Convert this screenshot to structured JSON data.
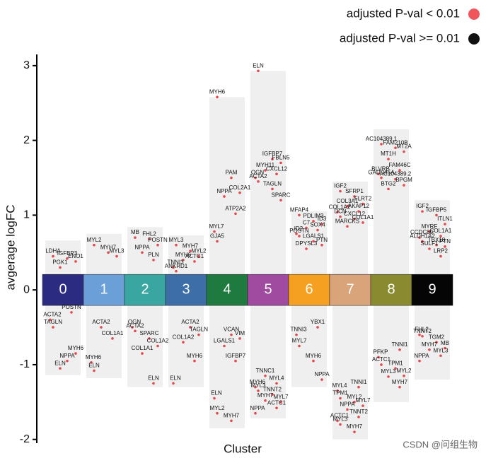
{
  "chart_data": {
    "type": "strip",
    "x_label": "Cluster",
    "y_label": "avgerage logFC",
    "ylim": [
      -2.05,
      3.15
    ],
    "yticks": [
      -2,
      -1,
      0,
      1,
      2,
      3
    ],
    "point_color": "#e5474d",
    "band_color": "#efefef",
    "legend": [
      {
        "name": "adjusted P-val < 0.01",
        "color": "#f0555c"
      },
      {
        "name": "adjusted  P-val >= 0.01",
        "color": "#111111"
      }
    ],
    "watermark": "CSDN @问组生物",
    "clusters": [
      {
        "label": "0",
        "color": "#2b2b82",
        "max": 0.66,
        "min": -1.14,
        "genes": [
          {
            "name": "LDHA",
            "value": 0.45
          },
          {
            "name": "IGFBP3",
            "value": 0.42
          },
          {
            "name": "ENO1",
            "value": 0.38
          },
          {
            "name": "PGK1",
            "value": 0.3
          },
          {
            "name": "POSTN",
            "value": -0.3
          },
          {
            "name": "ACTA2",
            "value": -0.4
          },
          {
            "name": "TAGLN",
            "value": -0.5
          },
          {
            "name": "NPPA",
            "value": -0.95
          },
          {
            "name": "MYH6",
            "value": -0.85
          },
          {
            "name": "ELN",
            "value": -1.05
          }
        ]
      },
      {
        "label": "1",
        "color": "#6b9fd8",
        "max": 0.75,
        "min": -1.18,
        "genes": [
          {
            "name": "MYL2",
            "value": 0.6
          },
          {
            "name": "MYH7",
            "value": 0.5
          },
          {
            "name": "MYL3",
            "value": 0.45
          },
          {
            "name": "ACTA2",
            "value": -0.5
          },
          {
            "name": "COL1A1",
            "value": -0.65
          },
          {
            "name": "MYH6",
            "value": -0.97
          },
          {
            "name": "ELN",
            "value": -1.08
          }
        ]
      },
      {
        "label": "2",
        "color": "#3aa6a2",
        "max": 0.84,
        "min": -1.3,
        "genes": [
          {
            "name": "MB",
            "value": 0.7
          },
          {
            "name": "FHL2",
            "value": 0.68
          },
          {
            "name": "POSTN",
            "value": 0.6
          },
          {
            "name": "NPPA",
            "value": 0.5
          },
          {
            "name": "PLN",
            "value": 0.4
          },
          {
            "name": "OGN",
            "value": -0.5
          },
          {
            "name": "ACTA2",
            "value": -0.55
          },
          {
            "name": "SPARC",
            "value": -0.65
          },
          {
            "name": "COL1A2",
            "value": -0.75
          },
          {
            "name": "COL1A1",
            "value": -0.85
          },
          {
            "name": "ELN",
            "value": -1.25
          }
        ]
      },
      {
        "label": "3",
        "color": "#3d6ea8",
        "max": 0.73,
        "min": -1.3,
        "genes": [
          {
            "name": "MYL3",
            "value": 0.6
          },
          {
            "name": "MYH7",
            "value": 0.52
          },
          {
            "name": "MYL2",
            "value": 0.45
          },
          {
            "name": "MYH6",
            "value": 0.4
          },
          {
            "name": "ACTC1",
            "value": 0.38
          },
          {
            "name": "TNNI3",
            "value": 0.3
          },
          {
            "name": "ANKRD1",
            "value": 0.25
          },
          {
            "name": "ACTA2",
            "value": -0.5
          },
          {
            "name": "TAGLN",
            "value": -0.6
          },
          {
            "name": "COL1A2",
            "value": -0.7
          },
          {
            "name": "MYH6",
            "value": -0.95
          },
          {
            "name": "ELN",
            "value": -1.25
          }
        ]
      },
      {
        "label": "4",
        "color": "#1e7a3e",
        "max": 2.58,
        "min": -1.85,
        "genes": [
          {
            "name": "MYH6",
            "value": 2.58
          },
          {
            "name": "PAM",
            "value": 1.5
          },
          {
            "name": "COL2A1",
            "value": 1.3
          },
          {
            "name": "NPPA",
            "value": 1.25
          },
          {
            "name": "ATP2A2",
            "value": 1.02
          },
          {
            "name": "MYL7",
            "value": 0.78
          },
          {
            "name": "GJA5",
            "value": 0.65
          },
          {
            "name": "VCAN",
            "value": -0.6
          },
          {
            "name": "VIM",
            "value": -0.65
          },
          {
            "name": "LGALS1",
            "value": -0.75
          },
          {
            "name": "IGFBP7",
            "value": -0.95
          },
          {
            "name": "ELN",
            "value": -1.45
          },
          {
            "name": "MYL2",
            "value": -1.65
          },
          {
            "name": "MYH7",
            "value": -1.75
          }
        ]
      },
      {
        "label": "5",
        "color": "#a04aa0",
        "max": 2.93,
        "min": -1.72,
        "genes": [
          {
            "name": "ELN",
            "value": 2.93
          },
          {
            "name": "IGFBP7",
            "value": 1.75
          },
          {
            "name": "FBLN5",
            "value": 1.7
          },
          {
            "name": "MYH11",
            "value": 1.6
          },
          {
            "name": "CXCL12",
            "value": 1.55
          },
          {
            "name": "OGN",
            "value": 1.5
          },
          {
            "name": "ACTA2",
            "value": 1.45
          },
          {
            "name": "TAGLN",
            "value": 1.35
          },
          {
            "name": "SPARC",
            "value": 1.2
          },
          {
            "name": "TNNC1",
            "value": -1.15
          },
          {
            "name": "MYL4",
            "value": -1.25
          },
          {
            "name": "MYH6",
            "value": -1.3
          },
          {
            "name": "MYL3",
            "value": -1.35
          },
          {
            "name": "TNNT2",
            "value": -1.4
          },
          {
            "name": "MYL7",
            "value": -1.5
          },
          {
            "name": "MYH7",
            "value": -1.48
          },
          {
            "name": "ACTC1",
            "value": -1.58
          },
          {
            "name": "NPPA",
            "value": -1.65
          }
        ]
      },
      {
        "label": "6",
        "color": "#f5a020",
        "max": 1.05,
        "min": -1.3,
        "genes": [
          {
            "name": "MFAP4",
            "value": 1.0
          },
          {
            "name": "PDLIM3",
            "value": 0.92
          },
          {
            "name": "ID3",
            "value": 0.88
          },
          {
            "name": "C7",
            "value": 0.83
          },
          {
            "name": "SOX4",
            "value": 0.8
          },
          {
            "name": "ID2",
            "value": 0.75
          },
          {
            "name": "POSTN",
            "value": 0.72
          },
          {
            "name": "LGALS1",
            "value": 0.65
          },
          {
            "name": "PTN",
            "value": 0.6
          },
          {
            "name": "DPYSL3",
            "value": 0.55
          },
          {
            "name": "YBX1",
            "value": -0.5
          },
          {
            "name": "TNNI3",
            "value": -0.6
          },
          {
            "name": "MYL7",
            "value": -0.75
          },
          {
            "name": "MYH6",
            "value": -0.95
          },
          {
            "name": "NPPA",
            "value": -1.2
          }
        ]
      },
      {
        "label": "7",
        "color": "#d9a47a",
        "max": 1.45,
        "min": -2.0,
        "genes": [
          {
            "name": "IGF2",
            "value": 1.32
          },
          {
            "name": "SFRP1",
            "value": 1.25
          },
          {
            "name": "FLRT2",
            "value": 1.15
          },
          {
            "name": "COL3A1",
            "value": 1.12
          },
          {
            "name": "AKAP12",
            "value": 1.05
          },
          {
            "name": "COL1A2",
            "value": 1.04
          },
          {
            "name": "DCN",
            "value": 0.98
          },
          {
            "name": "CXCL12",
            "value": 0.95
          },
          {
            "name": "COL1A1",
            "value": 0.9
          },
          {
            "name": "MARCKS",
            "value": 0.85
          },
          {
            "name": "TNNI1",
            "value": -1.3
          },
          {
            "name": "MYL4",
            "value": -1.35
          },
          {
            "name": "TPM1",
            "value": -1.45
          },
          {
            "name": "MYL2",
            "value": -1.5
          },
          {
            "name": "MYL7",
            "value": -1.55
          },
          {
            "name": "NPPA",
            "value": -1.6
          },
          {
            "name": "TNNT2",
            "value": -1.7
          },
          {
            "name": "ACTC1",
            "value": -1.75
          },
          {
            "name": "MYL3",
            "value": -1.8
          },
          {
            "name": "MYH7",
            "value": -1.9
          }
        ]
      },
      {
        "label": "8",
        "color": "#8a8a30",
        "max": 2.15,
        "min": -1.5,
        "genes": [
          {
            "name": "AC104389.1",
            "value": 1.95
          },
          {
            "name": "FAM210B",
            "value": 1.9
          },
          {
            "name": "MT2A",
            "value": 1.85
          },
          {
            "name": "MT1H",
            "value": 1.75
          },
          {
            "name": "FAM46C",
            "value": 1.6
          },
          {
            "name": "BLVRB",
            "value": 1.55
          },
          {
            "name": "GADD45A",
            "value": 1.5
          },
          {
            "name": "AC104389.2",
            "value": 1.48
          },
          {
            "name": "BPGM",
            "value": 1.4
          },
          {
            "name": "BTG2",
            "value": 1.35
          },
          {
            "name": "TNNI1",
            "value": -0.8
          },
          {
            "name": "PFKP",
            "value": -0.9
          },
          {
            "name": "ACTC1",
            "value": -1.0
          },
          {
            "name": "TPM1",
            "value": -1.05
          },
          {
            "name": "MYL2",
            "value": -1.15
          },
          {
            "name": "MYL3",
            "value": -1.16
          },
          {
            "name": "MYH7",
            "value": -1.3
          }
        ]
      },
      {
        "label": "9",
        "color": "#050505",
        "max": 1.2,
        "min": -1.2,
        "genes": [
          {
            "name": "IGF2",
            "value": 1.05
          },
          {
            "name": "IGFBP5",
            "value": 1.0
          },
          {
            "name": "ITLN1",
            "value": 0.88
          },
          {
            "name": "MYRF",
            "value": 0.78
          },
          {
            "name": "COL1A1",
            "value": 0.72
          },
          {
            "name": "CCDC80",
            "value": 0.7
          },
          {
            "name": "ALDH1A2",
            "value": 0.65
          },
          {
            "name": "TBX18",
            "value": 0.6
          },
          {
            "name": "PTN",
            "value": 0.58
          },
          {
            "name": "SULF1",
            "value": 0.55
          },
          {
            "name": "LRP2",
            "value": 0.45
          },
          {
            "name": "FHL2",
            "value": -0.6
          },
          {
            "name": "TNNT2",
            "value": -0.62
          },
          {
            "name": "TGM2",
            "value": -0.7
          },
          {
            "name": "MB",
            "value": -0.78
          },
          {
            "name": "MYH7",
            "value": -0.8
          },
          {
            "name": "MYL3",
            "value": -0.88
          },
          {
            "name": "NPPA",
            "value": -0.95
          }
        ]
      }
    ]
  }
}
